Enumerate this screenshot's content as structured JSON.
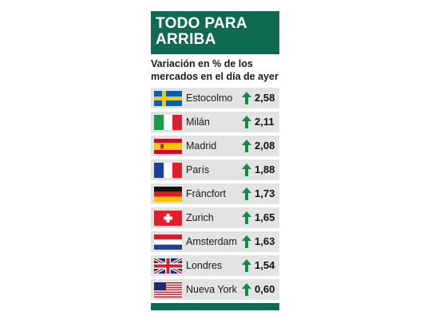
{
  "header": {
    "title": "TODO PARA ARRIBA"
  },
  "subtitle": "Variación en % de los mercados en el día de ayer",
  "colors": {
    "accent": "#0e6b52",
    "row_bg": "#e3e3e3",
    "arrow": "#138a47"
  },
  "chart_data": {
    "type": "table",
    "title": "TODO PARA ARRIBA",
    "subtitle": "Variación en % de los mercados en el día de ayer",
    "columns": [
      "flag",
      "market",
      "direction",
      "change_pct"
    ],
    "rows": [
      {
        "flag": "sweden-flag-icon",
        "market": "Estocolmo",
        "direction": "up-arrow-icon",
        "value_label": "2,58",
        "value": 2.58
      },
      {
        "flag": "italy-flag-icon",
        "market": "Milán",
        "direction": "up-arrow-icon",
        "value_label": "2,11",
        "value": 2.11
      },
      {
        "flag": "spain-flag-icon",
        "market": "Madrid",
        "direction": "up-arrow-icon",
        "value_label": "2,08",
        "value": 2.08
      },
      {
        "flag": "france-flag-icon",
        "market": "París",
        "direction": "up-arrow-icon",
        "value_label": "1,88",
        "value": 1.88
      },
      {
        "flag": "germany-flag-icon",
        "market": "Fráncfort",
        "direction": "up-arrow-icon",
        "value_label": "1,73",
        "value": 1.73
      },
      {
        "flag": "switzerland-flag-icon",
        "market": "Zurich",
        "direction": "up-arrow-icon",
        "value_label": "1,65",
        "value": 1.65
      },
      {
        "flag": "netherlands-flag-icon",
        "market": "Amsterdam",
        "direction": "up-arrow-icon",
        "value_label": "1,63",
        "value": 1.63
      },
      {
        "flag": "uk-flag-icon",
        "market": "Londres",
        "direction": "up-arrow-icon",
        "value_label": "1,54",
        "value": 1.54
      },
      {
        "flag": "usa-flag-icon",
        "market": "Nueva York",
        "direction": "up-arrow-icon",
        "value_label": "0,60",
        "value": 0.6
      }
    ]
  }
}
